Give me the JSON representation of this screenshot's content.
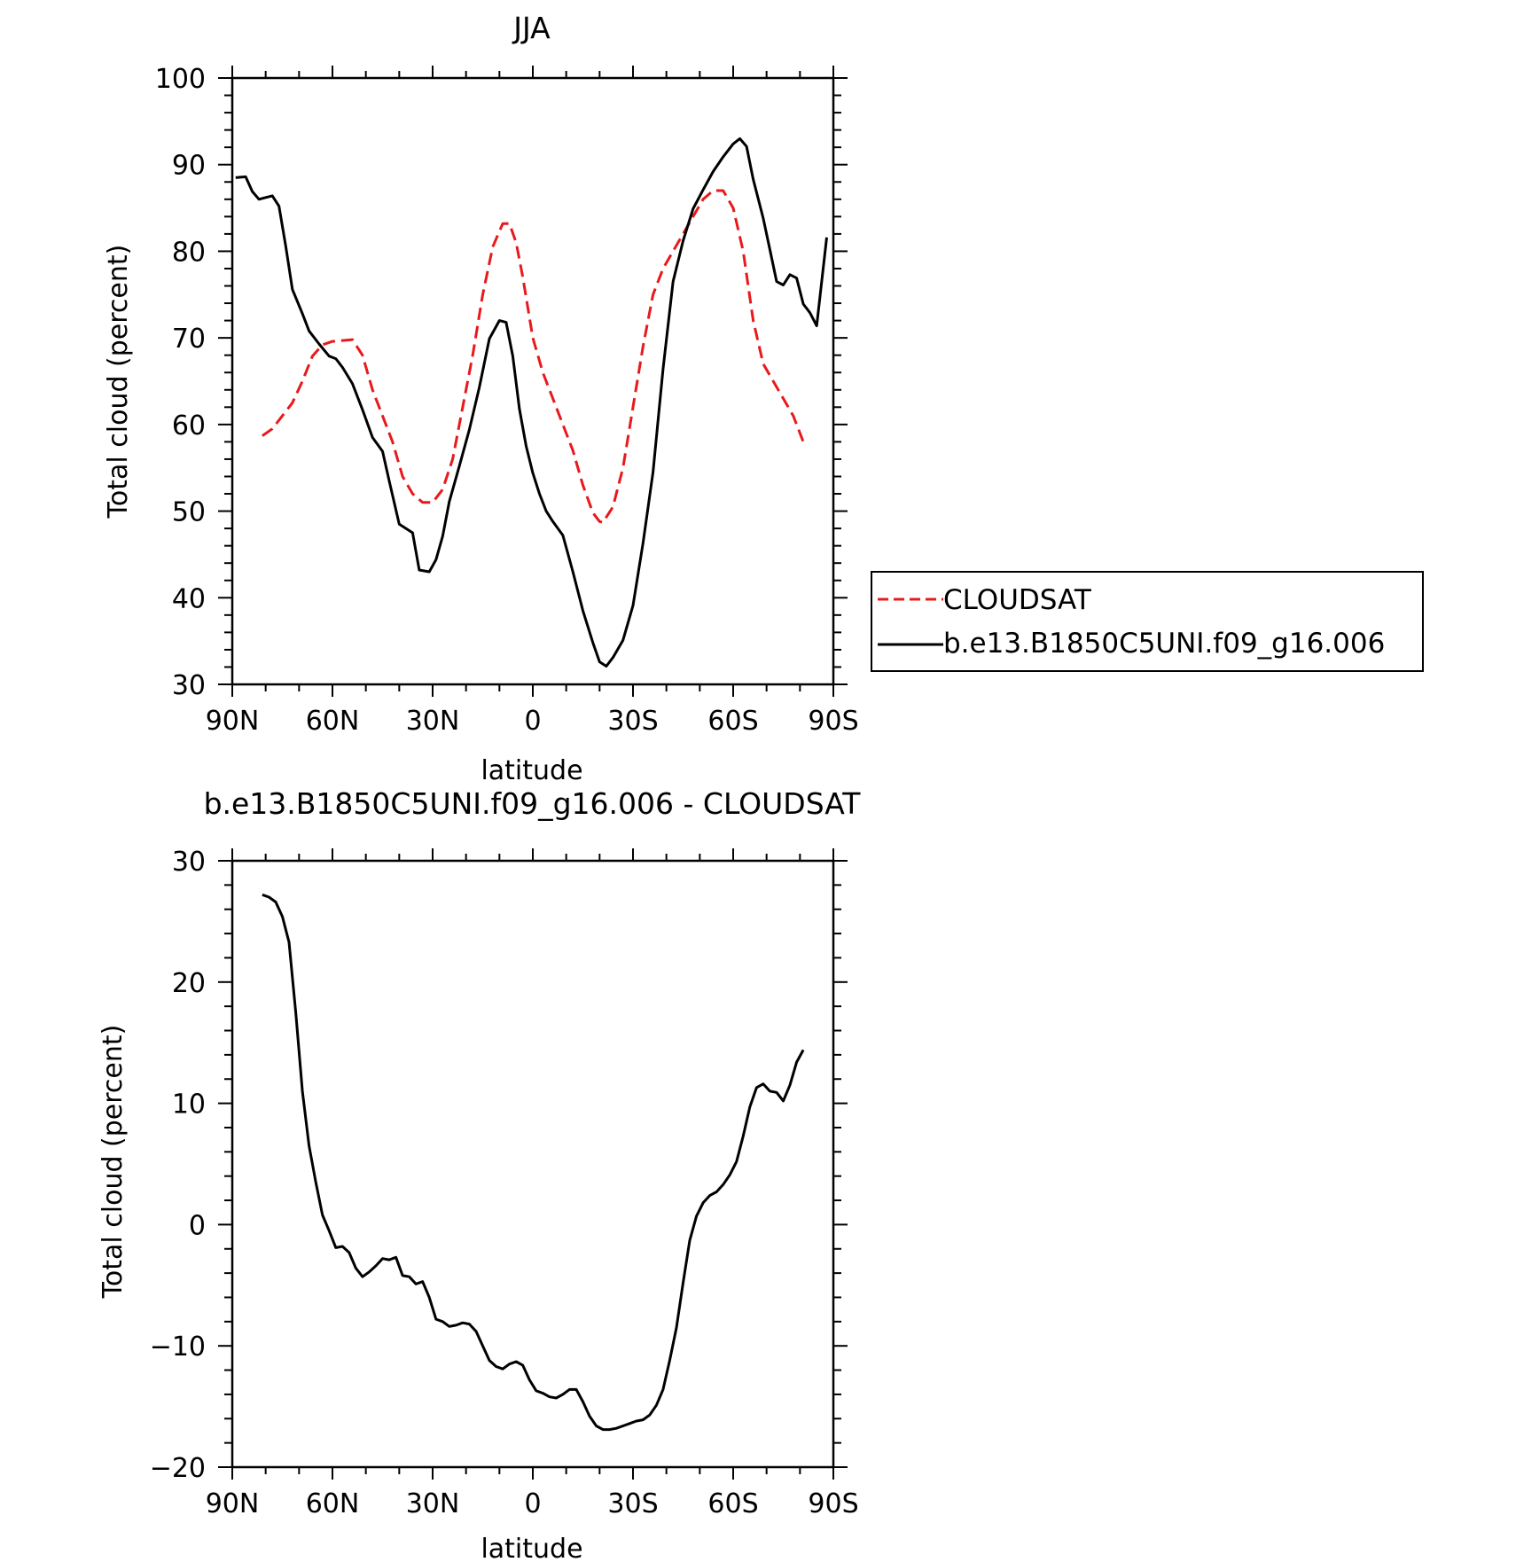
{
  "chart_data": [
    {
      "type": "line",
      "title": "JJA",
      "xlabel": "latitude",
      "ylabel": "Total cloud (percent)",
      "xlim": [
        90,
        -90
      ],
      "ylim": [
        30,
        100
      ],
      "x_ticks": [
        90,
        60,
        30,
        0,
        -30,
        -60,
        -90
      ],
      "x_tick_labels": [
        "90N",
        "60N",
        "30N",
        "0",
        "30S",
        "60S",
        "90S"
      ],
      "y_ticks": [
        30,
        40,
        50,
        60,
        70,
        80,
        90,
        100
      ],
      "y_tick_labels": [
        "30",
        "40",
        "50",
        "60",
        "70",
        "80",
        "90",
        "100"
      ],
      "grid": false,
      "legend_position": "right",
      "series": [
        {
          "name": "CLOUDSAT",
          "color": "#e8191c",
          "dash": "dashed",
          "x": [
            81,
            78,
            75,
            72,
            69,
            66,
            63,
            60,
            57,
            54,
            51,
            48,
            45,
            42,
            39,
            36,
            33,
            30,
            27,
            24,
            21,
            18,
            15,
            12,
            9,
            7,
            5,
            3,
            0,
            -3,
            -6,
            -9,
            -12,
            -15,
            -18,
            -20,
            -21,
            -24,
            -27,
            -30,
            -33,
            -36,
            -39,
            -42,
            -45,
            -48,
            -51,
            -54,
            -57,
            -60,
            -63,
            -66,
            -69,
            -72,
            -75,
            -78,
            -81
          ],
          "y": [
            58.7,
            59.5,
            61,
            62.5,
            65,
            67.9,
            69.2,
            69.6,
            69.7,
            69.8,
            68,
            64,
            61,
            58,
            54,
            52,
            51,
            51,
            52.5,
            56,
            62,
            68,
            75,
            80.5,
            83.2,
            83.2,
            81,
            77,
            70,
            66,
            63,
            60,
            57,
            53,
            49.8,
            48.8,
            48.7,
            50.5,
            55,
            62,
            69,
            75,
            78,
            80,
            82,
            84,
            86,
            87,
            87,
            85,
            80,
            72,
            67,
            65,
            63,
            61,
            58
          ]
        },
        {
          "name": "b.e13.B1850C5UNI.f09_g16.006",
          "color": "#000000",
          "dash": "solid",
          "x": [
            89,
            86,
            84,
            82,
            80,
            78,
            76,
            74,
            72,
            69,
            67,
            64,
            61,
            59,
            57,
            54,
            51,
            48,
            45,
            43,
            40,
            36,
            34,
            31,
            29,
            27,
            25,
            22,
            19,
            16,
            13,
            10,
            8,
            6,
            4,
            2,
            0,
            -2,
            -4,
            -6,
            -9,
            -12,
            -15,
            -18,
            -20,
            -22,
            -24,
            -27,
            -30,
            -33,
            -36,
            -39,
            -42,
            -45,
            -48,
            -51,
            -54,
            -57,
            -60,
            -62,
            -64,
            -66,
            -69,
            -71,
            -73,
            -75,
            -77,
            -79,
            -81,
            -83,
            -85,
            -88
          ],
          "y": [
            88.5,
            88.6,
            86.9,
            86,
            86.2,
            86.4,
            85.2,
            80.6,
            75.6,
            72.8,
            70.8,
            69.3,
            67.9,
            67.6,
            66.6,
            64.7,
            61.7,
            58.5,
            56.9,
            53.5,
            48.5,
            47.5,
            43.2,
            43,
            44.4,
            47.1,
            51.1,
            55.2,
            59.4,
            64.3,
            69.9,
            72,
            71.8,
            67.9,
            61.8,
            57.5,
            54.4,
            52,
            50,
            48.8,
            47.2,
            43,
            38.5,
            34.8,
            32.6,
            32.1,
            33.1,
            35.1,
            39.1,
            46.3,
            54.5,
            66.4,
            76.5,
            81.2,
            84.9,
            87.1,
            89.2,
            90.9,
            92.4,
            93,
            92.1,
            88.3,
            83.8,
            80.2,
            76.5,
            76.1,
            77.3,
            76.9,
            73.9,
            72.9,
            71.4,
            81.6
          ]
        }
      ]
    },
    {
      "type": "line",
      "title": "b.e13.B1850C5UNI.f09_g16.006 - CLOUDSAT",
      "xlabel": "latitude",
      "ylabel": "Total cloud (percent)",
      "xlim": [
        90,
        -90
      ],
      "ylim": [
        -20,
        30
      ],
      "x_ticks": [
        90,
        60,
        30,
        0,
        -30,
        -60,
        -90
      ],
      "x_tick_labels": [
        "90N",
        "60N",
        "30N",
        "0",
        "30S",
        "60S",
        "90S"
      ],
      "y_ticks": [
        -20,
        -10,
        0,
        10,
        20,
        30
      ],
      "y_tick_labels": [
        "−20",
        "−10",
        "0",
        "10",
        "20",
        "30"
      ],
      "grid": false,
      "series": [
        {
          "color": "#000000",
          "dash": "solid",
          "x": [
            81,
            79,
            77,
            75,
            73,
            71,
            69,
            67,
            65,
            63,
            61,
            59,
            57,
            55,
            53,
            51,
            49,
            47,
            45,
            43,
            41,
            39,
            37,
            35,
            33,
            31,
            29,
            27,
            25,
            23,
            21,
            19,
            17,
            15,
            13,
            11,
            9,
            7,
            5,
            3,
            1,
            -1,
            -3,
            -5,
            -7,
            -9,
            -11,
            -13,
            -15,
            -17,
            -19,
            -21,
            -23,
            -25,
            -27,
            -29,
            -31,
            -33,
            -35,
            -37,
            -39,
            -41,
            -43,
            -45,
            -47,
            -49,
            -51,
            -53,
            -55,
            -57,
            -59,
            -61,
            -63,
            -65,
            -67,
            -69,
            -71,
            -73,
            -75,
            -77,
            -79,
            -81
          ],
          "y": [
            27.2,
            27,
            26.6,
            25.4,
            23.3,
            17.5,
            11,
            6.5,
            3.5,
            0.8,
            -0.5,
            -1.9,
            -1.8,
            -2.3,
            -3.6,
            -4.3,
            -3.9,
            -3.4,
            -2.8,
            -2.9,
            -2.7,
            -4.2,
            -4.3,
            -4.9,
            -4.7,
            -6,
            -7.8,
            -8,
            -8.4,
            -8.3,
            -8.1,
            -8.2,
            -8.8,
            -10,
            -11.2,
            -11.7,
            -11.9,
            -11.5,
            -11.3,
            -11.6,
            -12.8,
            -13.7,
            -13.9,
            -14.2,
            -14.3,
            -14,
            -13.6,
            -13.6,
            -14.6,
            -15.8,
            -16.6,
            -16.9,
            -16.9,
            -16.8,
            -16.6,
            -16.4,
            -16.2,
            -16.1,
            -15.7,
            -14.9,
            -13.6,
            -11.2,
            -8.5,
            -4.8,
            -1.3,
            0.7,
            1.8,
            2.4,
            2.7,
            3.3,
            4.1,
            5.2,
            7.3,
            9.7,
            11.3,
            11.6,
            11,
            10.9,
            10.2,
            11.5,
            13.4,
            14.4
          ]
        }
      ]
    }
  ]
}
